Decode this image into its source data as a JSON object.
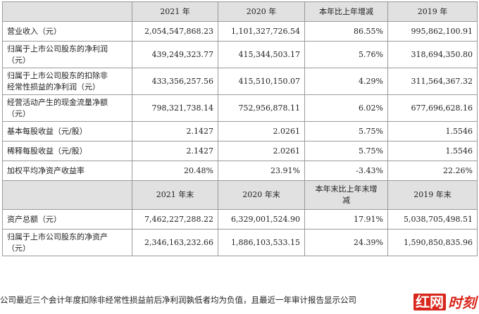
{
  "header1": [
    "",
    "2021 年",
    "2020 年",
    "本年比上年增减",
    "2019 年"
  ],
  "rows1": [
    {
      "label": [
        "营业收入（元）"
      ],
      "v2021": "2,054,547,868.23",
      "v2020": "1,101,327,726.54",
      "change": "86.55%",
      "v2019": "995,862,100.91"
    },
    {
      "label": [
        "归属于上市公司股东的净利润",
        "（元）"
      ],
      "v2021": "439,249,323.77",
      "v2020": "415,344,503.17",
      "change": "5.76%",
      "v2019": "318,694,350.80"
    },
    {
      "label": [
        "归属于上市公司股东的扣除非",
        "经常性损益的净利润（元）"
      ],
      "v2021": "433,356,257.56",
      "v2020": "415,510,150.07",
      "change": "4.29%",
      "v2019": "311,564,367.32"
    },
    {
      "label": [
        "经营活动产生的现金流量净额",
        "（元）"
      ],
      "v2021": "798,321,738.14",
      "v2020": "752,956,878.11",
      "change": "6.02%",
      "v2019": "677,696,628.16"
    },
    {
      "label": [
        "基本每股收益（元/股）"
      ],
      "v2021": "2.1427",
      "v2020": "2.0261",
      "change": "5.75%",
      "v2019": "1.5546"
    },
    {
      "label": [
        "稀释每股收益（元/股）"
      ],
      "v2021": "2.1427",
      "v2020": "2.0261",
      "change": "5.75%",
      "v2019": "1.5546"
    },
    {
      "label": [
        "加权平均净资产收益率"
      ],
      "v2021": "20.48%",
      "v2020": "23.91%",
      "change": "-3.43%",
      "v2019": "22.26%"
    }
  ],
  "header2": [
    "",
    "2021 年末",
    "2020 年末",
    [
      "本年末比上年末增",
      "减"
    ],
    "2019 年末"
  ],
  "rows2": [
    {
      "label": [
        "资产总额（元）"
      ],
      "v2021": "7,462,227,288.22",
      "v2020": "6,329,001,524.90",
      "change": "17.91%",
      "v2019": "5,038,705,498.51"
    },
    {
      "label": [
        "归属于上市公司股东的净资产",
        "（元）"
      ],
      "v2021": "2,346,163,232.66",
      "v2020": "1,886,103,533.15",
      "change": "24.39%",
      "v2019": "1,590,850,835.96"
    }
  ],
  "footer": "公司最近三个会计年度扣除非经常性损益前后净利润孰低者均为负值，且最近一年审计报告显示公司",
  "watermark": {
    "box": "红网",
    "text": "时刻",
    "colors": {
      "brand": "#d9261c"
    }
  }
}
